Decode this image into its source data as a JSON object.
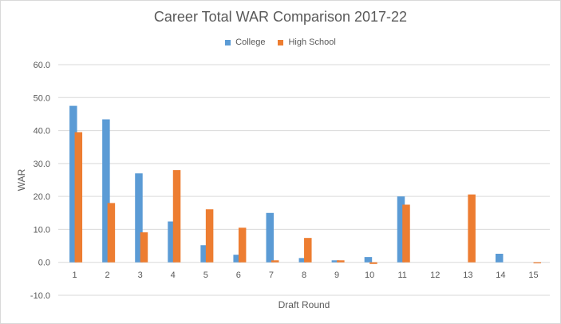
{
  "chart_data": {
    "type": "bar",
    "title": "Career Total WAR Comparison 2017-22",
    "xlabel": "Draft Round",
    "ylabel": "WAR",
    "categories": [
      "1",
      "2",
      "3",
      "4",
      "5",
      "6",
      "7",
      "8",
      "9",
      "10",
      "11",
      "12",
      "13",
      "14",
      "15"
    ],
    "series": [
      {
        "name": "College",
        "color": "#5b9bd5",
        "values": [
          47.5,
          43.4,
          27.0,
          12.4,
          5.2,
          2.3,
          15.0,
          1.3,
          0.6,
          1.6,
          20.0,
          0,
          0,
          2.6,
          0
        ]
      },
      {
        "name": "High School",
        "color": "#ed7d31",
        "values": [
          39.5,
          18.0,
          9.1,
          28.0,
          16.1,
          10.5,
          0.6,
          7.4,
          0.6,
          -0.5,
          17.5,
          0,
          20.6,
          0,
          -0.3
        ]
      }
    ],
    "ylim": [
      -10,
      60
    ],
    "yticks": [
      "-10.0",
      "0.0",
      "10.0",
      "20.0",
      "30.0",
      "40.0",
      "50.0",
      "60.0"
    ],
    "grid": true,
    "legend_position": "top"
  }
}
